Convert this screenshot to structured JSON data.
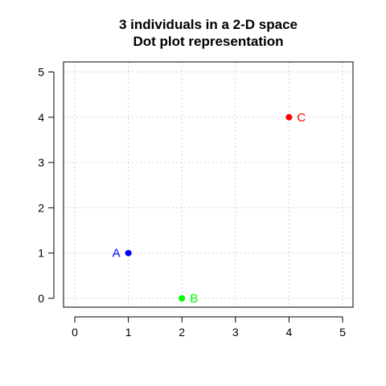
{
  "chart_data": {
    "type": "scatter",
    "title": "3 individuals in a 2-D space",
    "subtitle": "Dot plot representation",
    "xlabel": "",
    "ylabel": "",
    "xlim": [
      0,
      5
    ],
    "ylim": [
      0,
      5
    ],
    "xticks": [
      "0",
      "1",
      "2",
      "3",
      "4",
      "5"
    ],
    "yticks": [
      "0",
      "1",
      "2",
      "3",
      "4",
      "5"
    ],
    "grid": true,
    "legend": "none",
    "points": [
      {
        "label": "A",
        "x": 1,
        "y": 1,
        "color": "#0000ff",
        "label_side": "left"
      },
      {
        "label": "B",
        "x": 2,
        "y": 0,
        "color": "#00ff00",
        "label_side": "right"
      },
      {
        "label": "C",
        "x": 4,
        "y": 4,
        "color": "#ff0000",
        "label_side": "right"
      }
    ]
  }
}
